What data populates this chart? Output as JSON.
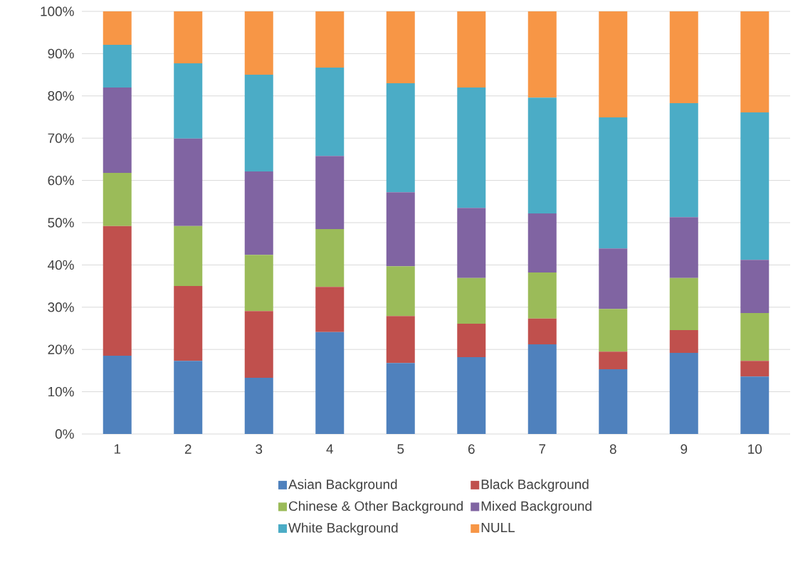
{
  "chart_data": {
    "type": "bar",
    "stacked": true,
    "categories": [
      "1",
      "2",
      "3",
      "4",
      "5",
      "6",
      "7",
      "8",
      "9",
      "10"
    ],
    "series": [
      {
        "name": "Asian Background",
        "color": "#4f81bd",
        "values": [
          18.5,
          17.3,
          13.3,
          24.1,
          16.8,
          18.2,
          21.2,
          15.3,
          19.2,
          13.6
        ]
      },
      {
        "name": "Black Background",
        "color": "#c0504d",
        "values": [
          30.7,
          17.7,
          15.8,
          10.7,
          11.1,
          7.9,
          6.1,
          4.2,
          5.4,
          3.7
        ]
      },
      {
        "name": "Chinese & Other Background",
        "color": "#9bbb59",
        "values": [
          12.6,
          14.2,
          13.3,
          13.7,
          11.8,
          10.8,
          10.9,
          10.1,
          12.3,
          11.3
        ]
      },
      {
        "name": "Mixed Background",
        "color": "#8064a2",
        "values": [
          20.2,
          20.7,
          19.7,
          17.3,
          17.5,
          16.6,
          14.0,
          14.3,
          14.4,
          12.6
        ]
      },
      {
        "name": "White Background",
        "color": "#4bacc6",
        "values": [
          10.1,
          17.8,
          22.9,
          20.9,
          25.8,
          28.5,
          27.4,
          31.0,
          27.0,
          34.9
        ]
      },
      {
        "name": "NULL",
        "color": "#f79646",
        "values": [
          7.9,
          12.3,
          15.0,
          13.3,
          17.0,
          18.0,
          20.4,
          25.1,
          21.7,
          23.9
        ]
      }
    ],
    "ylim": [
      0,
      100
    ],
    "yticks": [
      {
        "value": 0,
        "label": "0%"
      },
      {
        "value": 10,
        "label": "10%"
      },
      {
        "value": 20,
        "label": "20%"
      },
      {
        "value": 30,
        "label": "30%"
      },
      {
        "value": 40,
        "label": "40%"
      },
      {
        "value": 50,
        "label": "50%"
      },
      {
        "value": 60,
        "label": "60%"
      },
      {
        "value": 70,
        "label": "70%"
      },
      {
        "value": 80,
        "label": "80%"
      },
      {
        "value": 90,
        "label": "90%"
      },
      {
        "value": 100,
        "label": "100%"
      }
    ],
    "grid": "y",
    "legend": "bottom"
  }
}
